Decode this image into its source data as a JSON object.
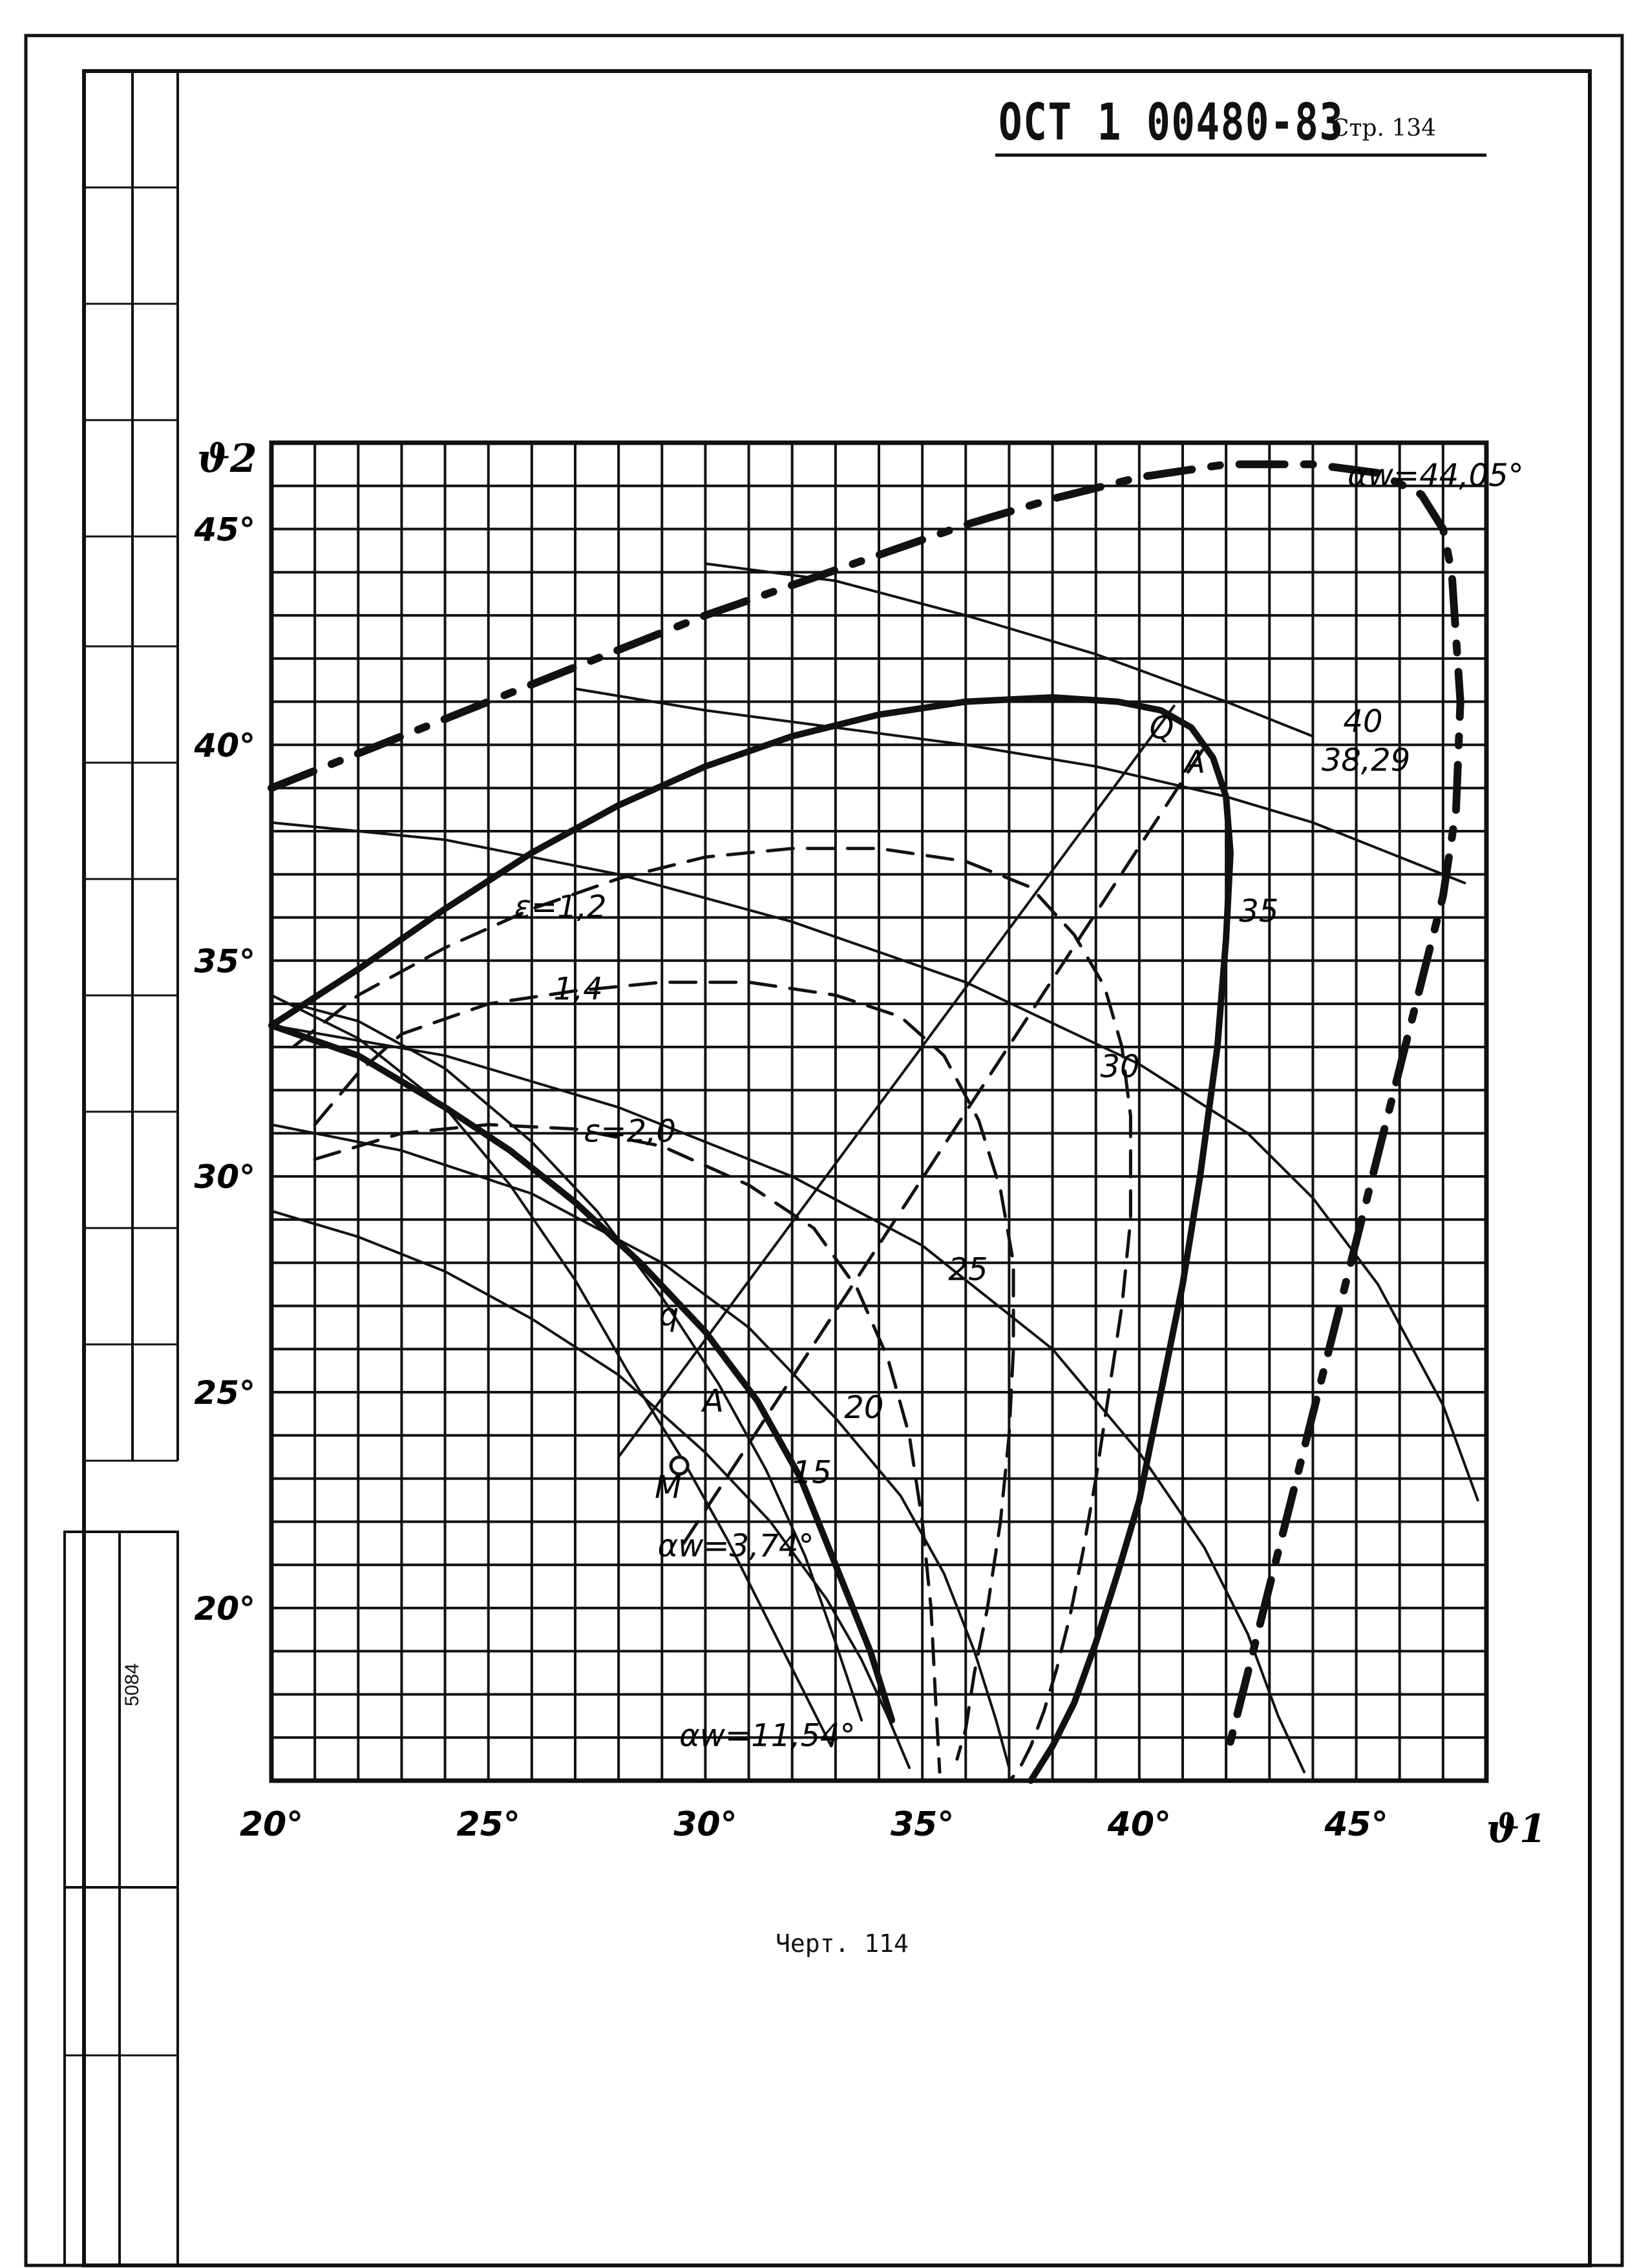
{
  "document": {
    "code": "ОСТ 1 00480-83",
    "page": "Стр. 134",
    "caption": "Черт. 114",
    "sheet_number": "5084"
  },
  "chart_data": {
    "type": "line",
    "xlabel": "ϑ1",
    "ylabel": "ϑ2",
    "xlim": [
      20,
      48
    ],
    "ylim": [
      16,
      47
    ],
    "x_ticks": [
      "20°",
      "25°",
      "30°",
      "35°",
      "40°",
      "45°"
    ],
    "y_ticks": [
      "20°",
      "25°",
      "30°",
      "35°",
      "40°",
      "45°"
    ],
    "grid": true,
    "series": [
      {
        "name": "αw=44,05°",
        "style": "heavy-dashdot",
        "x": [
          20,
          22,
          24,
          26,
          28,
          30,
          32,
          34,
          36,
          38,
          40,
          42,
          44,
          45.5,
          46.5,
          47,
          47.2,
          47.4,
          47.3,
          47,
          46.5,
          46,
          45.5,
          45,
          44.5,
          44,
          43.5,
          43,
          42.5,
          42
        ],
        "y": [
          39,
          39.8,
          40.6,
          41.4,
          42.2,
          43,
          43.7,
          44.4,
          45.1,
          45.7,
          46.2,
          46.5,
          46.5,
          46.3,
          45.8,
          45,
          44,
          41,
          38.5,
          36.5,
          34.5,
          32.5,
          30.5,
          28.5,
          26.5,
          24.5,
          22.5,
          20.5,
          18.5,
          16.5
        ]
      },
      {
        "name": "αw=11,54°",
        "style": "heavy-solid",
        "x": [
          20,
          22,
          24,
          26,
          28,
          30,
          32,
          34,
          36,
          38,
          39.5,
          40.5,
          41.2,
          41.7,
          42,
          42.1,
          42,
          41.8,
          41.4,
          41,
          40.5,
          40,
          39.5,
          39,
          38.5,
          38,
          37.5
        ],
        "y": [
          33.5,
          34.8,
          36.2,
          37.5,
          38.6,
          39.5,
          40.2,
          40.7,
          41,
          41.1,
          41,
          40.8,
          40.4,
          39.7,
          38.8,
          37.5,
          35.5,
          33,
          30,
          27.5,
          25,
          22.5,
          20.8,
          19.2,
          17.8,
          16.8,
          16
        ]
      },
      {
        "name": "ε=1,2",
        "style": "dashed",
        "x": [
          20.5,
          22,
          24,
          26,
          28,
          30,
          32,
          34,
          36,
          37.5,
          38.5,
          39.2,
          39.6,
          39.8,
          39.8,
          39.6,
          39.3,
          39,
          38.7,
          38.4,
          38.1,
          37.8,
          37.5,
          37.2,
          37
        ],
        "y": [
          33,
          34.2,
          35.3,
          36.2,
          36.9,
          37.4,
          37.6,
          37.6,
          37.3,
          36.7,
          35.6,
          34.4,
          33,
          31.4,
          29,
          27,
          25,
          23,
          21.3,
          19.8,
          18.6,
          17.6,
          16.8,
          16.2,
          16
        ]
      },
      {
        "name": "1,4",
        "style": "dashed",
        "x": [
          21,
          22,
          23,
          25,
          27,
          29,
          31,
          33,
          34.5,
          35.5,
          36.3,
          36.8,
          37.1,
          37.1,
          37,
          36.8,
          36.5,
          36.2,
          36,
          35.8
        ],
        "y": [
          31.2,
          32.4,
          33.3,
          34,
          34.3,
          34.5,
          34.5,
          34.2,
          33.7,
          32.8,
          31.3,
          29.7,
          28,
          26,
          24,
          22,
          20,
          18.5,
          17.2,
          16.5
        ]
      },
      {
        "name": "ε=2,0",
        "style": "dashed",
        "x": [
          21,
          23,
          25,
          27,
          29,
          31,
          32.5,
          33.5,
          34.2,
          34.7,
          35,
          35.2,
          35.3,
          35.4
        ],
        "y": [
          30.4,
          31,
          31.2,
          31.1,
          30.7,
          29.8,
          28.8,
          27.4,
          25.8,
          24,
          22,
          20,
          18,
          16.2
        ]
      },
      {
        "name": "Q-line",
        "style": "solid",
        "x": [
          28,
          40.8
        ],
        "y": [
          23.5,
          40.9
        ]
      },
      {
        "name": "A-line",
        "style": "dashed",
        "x": [
          29.5,
          41.6
        ],
        "y": [
          21.5,
          40.1
        ]
      },
      {
        "name": "40",
        "style": "solid",
        "x": [
          27,
          30,
          33,
          36,
          39,
          42,
          44,
          46,
          47.5
        ],
        "y": [
          41.3,
          40.8,
          40.4,
          40,
          39.5,
          38.8,
          38.2,
          37.4,
          36.8
        ]
      },
      {
        "name": "38,29",
        "style": "solid",
        "x": [
          20,
          24,
          28,
          32,
          36,
          40,
          42.5,
          44,
          45.5,
          47,
          47.8
        ],
        "y": [
          38.2,
          37.8,
          37,
          35.9,
          34.5,
          32.6,
          31,
          29.5,
          27.5,
          24.7,
          22.5
        ]
      },
      {
        "name": "35",
        "style": "solid",
        "x": [
          20,
          24,
          28,
          32,
          35,
          38,
          40,
          41.5,
          42.5,
          43.2,
          43.8
        ],
        "y": [
          33.5,
          32.8,
          31.6,
          30,
          28.4,
          26,
          23.6,
          21.4,
          19.4,
          17.5,
          16.2
        ]
      },
      {
        "name": "30",
        "style": "solid",
        "x": [
          20,
          23,
          26,
          29,
          31,
          33,
          34.5,
          35.5,
          36.2,
          36.7,
          37
        ],
        "y": [
          31.2,
          30.6,
          29.6,
          28,
          26.5,
          24.4,
          22.6,
          20.8,
          19,
          17.4,
          16.3
        ]
      },
      {
        "name": "25",
        "style": "solid",
        "x": [
          20,
          22,
          24,
          26,
          28,
          30,
          31.5,
          32.8,
          33.6,
          34.2,
          34.7
        ],
        "y": [
          29.2,
          28.6,
          27.8,
          26.7,
          25.4,
          23.6,
          22,
          20.2,
          18.8,
          17.5,
          16.3
        ]
      },
      {
        "name": "20",
        "style": "solid",
        "x": [
          20.5,
          22,
          24,
          26,
          27.5,
          29,
          30.3,
          31.4,
          32.3,
          33,
          33.6
        ],
        "y": [
          34,
          33.6,
          32.5,
          30.8,
          29.2,
          27.2,
          25.2,
          23.2,
          21.2,
          19.2,
          17.4
        ]
      },
      {
        "name": "15",
        "style": "heavy-solid",
        "x": [
          20,
          22,
          24,
          25.5,
          27,
          28.5,
          30,
          31.2,
          32.2,
          33,
          33.8,
          34.3
        ],
        "y": [
          33.5,
          32.8,
          31.6,
          30.6,
          29.4,
          28,
          26.4,
          24.8,
          23,
          21,
          19,
          17.4
        ]
      },
      {
        "name": "αw=3,74°",
        "style": "solid",
        "x": [
          20,
          22,
          24,
          25.5,
          27,
          28.2,
          29.5,
          30.5,
          31.4,
          32.2,
          32.9
        ],
        "y": [
          34.2,
          33.2,
          31.6,
          29.8,
          27.6,
          25.5,
          23.4,
          21.6,
          19.8,
          18.2,
          16.8
        ]
      },
      {
        "name": "upper-thin",
        "style": "solid",
        "x": [
          30,
          33,
          36,
          39,
          42,
          44
        ],
        "y": [
          44.2,
          43.8,
          43,
          42.1,
          41,
          40.2
        ]
      }
    ],
    "points": [
      {
        "label": "Q",
        "x": 40.8,
        "y": 40.9
      },
      {
        "label": "A",
        "x": 41.6,
        "y": 40.1
      },
      {
        "label": "M",
        "x": 29.4,
        "y": 23.3
      },
      {
        "label": "q",
        "x": 29.5,
        "y": 27.3
      },
      {
        "label": "A",
        "x": 30.5,
        "y": 25.3
      }
    ],
    "annotations": [
      {
        "text": "αw=44,05°",
        "x": 44.8,
        "y": 46
      },
      {
        "text": "40",
        "x": 44.7,
        "y": 40.3
      },
      {
        "text": "38,29",
        "x": 44.2,
        "y": 39.4
      },
      {
        "text": "35",
        "x": 42.3,
        "y": 35.9
      },
      {
        "text": "30",
        "x": 39.1,
        "y": 32.3
      },
      {
        "text": "25",
        "x": 35.6,
        "y": 27.6
      },
      {
        "text": "20",
        "x": 33.2,
        "y": 24.4
      },
      {
        "text": "15",
        "x": 32,
        "y": 22.9
      },
      {
        "text": "ε=1,2",
        "x": 25.6,
        "y": 36
      },
      {
        "text": "1,4",
        "x": 26.5,
        "y": 34.1
      },
      {
        "text": "ε=2,0",
        "x": 27.2,
        "y": 30.8
      },
      {
        "text": "αw=3,74°",
        "x": 28.9,
        "y": 21.2
      },
      {
        "text": "αw=11,54°",
        "x": 29.4,
        "y": 16.8
      }
    ]
  }
}
